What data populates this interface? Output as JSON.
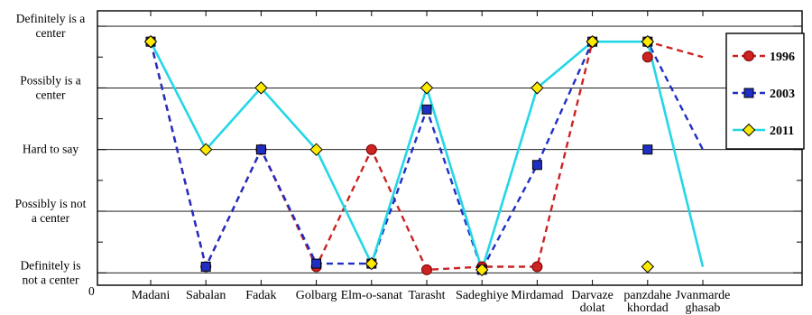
{
  "chart_data": {
    "type": "line",
    "categories": [
      "Madani",
      "Sabalan",
      "Fadak",
      "Golbarg",
      "Elm-o-sanat",
      "Tarasht",
      "Sadeghiye",
      "Mirdamad",
      "Darvaze dolat",
      "panzdahe khordad",
      "Jvanmarde ghasab"
    ],
    "y_levels": [
      "Definitely is not a center",
      "Possibly is not a center",
      "Hard to say",
      "Possibly is a center",
      "Definitely is a center"
    ],
    "ylim": [
      0.8,
      5.25
    ],
    "x_origin_label": "0",
    "grid": "horizontal",
    "legend_position": "top-right",
    "series": [
      {
        "name": "1996",
        "color": "#cc2222",
        "marker": "circle",
        "dashed": true,
        "values": [
          4.75,
          1.1,
          3,
          1.1,
          3,
          1.05,
          1.1,
          1.1,
          4.75,
          4.75,
          4.5
        ]
      },
      {
        "name": "2003",
        "color": "#1f2fc4",
        "marker": "square",
        "dashed": true,
        "values": [
          4.75,
          1.1,
          3,
          1.15,
          1.15,
          3.65,
          1.05,
          2.75,
          4.75,
          4.75,
          3
        ]
      },
      {
        "name": "2011",
        "color": "#22d7e6",
        "marker": "diamond",
        "dashed": false,
        "values": [
          4.75,
          3,
          4,
          3,
          1.15,
          4,
          1.05,
          4,
          4.75,
          4.75,
          1.1
        ]
      }
    ]
  }
}
